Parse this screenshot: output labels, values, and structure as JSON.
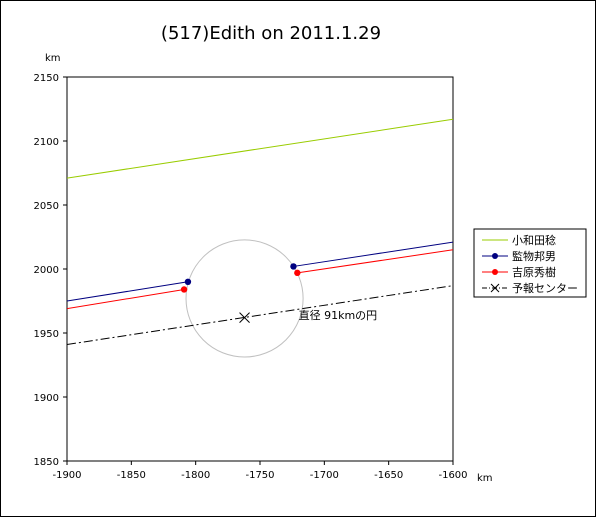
{
  "chart_data": {
    "type": "line",
    "title": "(517)Edith on 2011.1.29",
    "xunit": "km",
    "yunit": "km",
    "xlim": [
      -1900,
      -1600
    ],
    "ylim": [
      1850,
      2150
    ],
    "xticks": [
      -1900,
      -1850,
      -1800,
      -1750,
      -1700,
      -1650,
      -1600
    ],
    "yticks": [
      1850,
      1900,
      1950,
      2000,
      2050,
      2100,
      2150
    ],
    "xtick_labels": [
      "-1900",
      "-1850",
      "-1800",
      "-1750",
      "-1700",
      "-1650",
      "-1600"
    ],
    "ytick_labels": [
      "1850",
      "1900",
      "1950",
      "2000",
      "2050",
      "2100",
      "2150"
    ],
    "legend_position": "right",
    "series": [
      {
        "name": "小和田稔",
        "color": "#99cc00",
        "style": "solid",
        "marker": "none",
        "segments": [
          [
            [
              -1900,
              2071
            ],
            [
              -1600,
              2117
            ]
          ]
        ]
      },
      {
        "name": "監物邦男",
        "color": "#000080",
        "style": "solid",
        "marker": "circle",
        "segments": [
          [
            [
              -1900,
              1975
            ],
            [
              -1806,
              1990
            ]
          ],
          [
            [
              -1724,
              2002
            ],
            [
              -1600,
              2021
            ]
          ]
        ],
        "points": [
          [
            -1806,
            1990
          ],
          [
            -1724,
            2002
          ]
        ]
      },
      {
        "name": "吉原秀樹",
        "color": "#ff0000",
        "style": "solid",
        "marker": "circle",
        "segments": [
          [
            [
              -1900,
              1969
            ],
            [
              -1809,
              1984
            ]
          ],
          [
            [
              -1721,
              1997
            ],
            [
              -1600,
              2015
            ]
          ]
        ],
        "points": [
          [
            -1809,
            1984
          ],
          [
            -1721,
            1997
          ]
        ]
      },
      {
        "name": "予報センター",
        "color": "#000000",
        "style": "dashdot",
        "marker": "x",
        "segments": [
          [
            [
              -1900,
              1941
            ],
            [
              -1600,
              1987
            ]
          ]
        ],
        "points": [
          [
            -1762,
            1962
          ]
        ]
      }
    ],
    "circle": {
      "center": [
        -1762,
        1977
      ],
      "diameter_km": 91,
      "color": "#c0c0c0",
      "label": "直径 91kmの円",
      "label_anchor": [
        -1720,
        1961
      ]
    }
  }
}
